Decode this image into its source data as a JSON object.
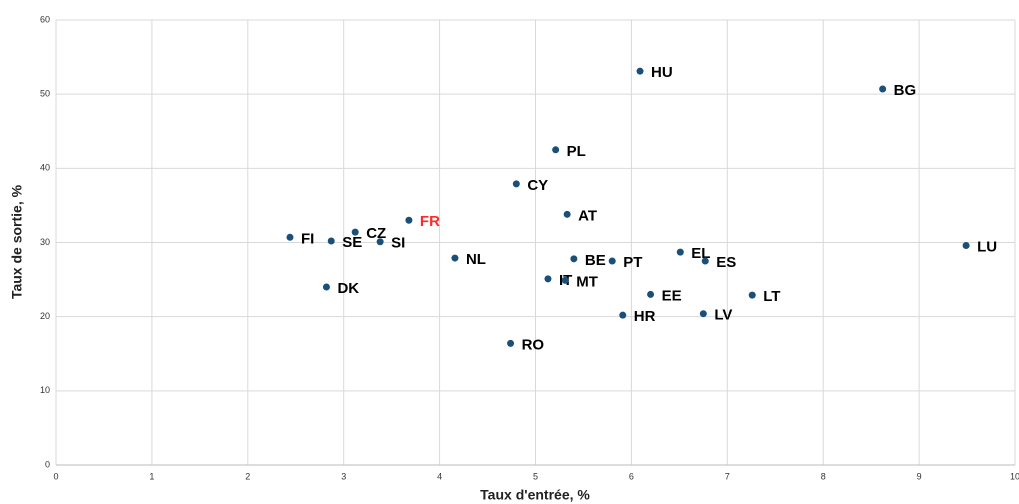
{
  "chart_data": {
    "type": "scatter",
    "xlabel": "Taux d'entrée, %",
    "ylabel": "Taux de sortie, %",
    "labels": [
      "FI",
      "SE",
      "CZ",
      "SI",
      "FR",
      "DK",
      "NL",
      "RO",
      "CY",
      "PL",
      "AT",
      "BE",
      "IT",
      "MT",
      "PT",
      "HU",
      "HR",
      "EE",
      "EL",
      "ES",
      "LV",
      "LT",
      "BG",
      "LU"
    ],
    "x": [
      2.44,
      2.87,
      3.12,
      3.38,
      3.68,
      2.82,
      4.16,
      4.74,
      4.8,
      5.21,
      5.33,
      5.4,
      5.13,
      5.31,
      5.8,
      6.09,
      5.91,
      6.2,
      6.51,
      6.77,
      6.75,
      7.26,
      8.62,
      9.49
    ],
    "values": [
      30.7,
      30.2,
      31.4,
      30.1,
      33.0,
      24.0,
      27.9,
      16.4,
      37.9,
      42.5,
      33.8,
      27.8,
      25.1,
      24.9,
      27.5,
      53.1,
      20.2,
      23.0,
      28.7,
      27.5,
      20.4,
      22.9,
      50.7,
      29.6
    ],
    "label_colors": [
      "#000",
      "#000",
      "#000",
      "#000",
      "#ff2a2a",
      "#000",
      "#000",
      "#000",
      "#000",
      "#000",
      "#000",
      "#000",
      "#000",
      "#000",
      "#000",
      "#000",
      "#000",
      "#000",
      "#000",
      "#000",
      "#000",
      "#000",
      "#000",
      "#000"
    ],
    "color": "#1a4f7a",
    "xlim": [
      0,
      10
    ],
    "xticks": [
      0,
      1,
      2,
      3,
      4,
      5,
      6,
      7,
      8,
      9,
      10
    ],
    "ylim": [
      0,
      60
    ],
    "yticks": [
      0,
      10,
      20,
      30,
      40,
      50,
      60
    ],
    "grid": true
  }
}
